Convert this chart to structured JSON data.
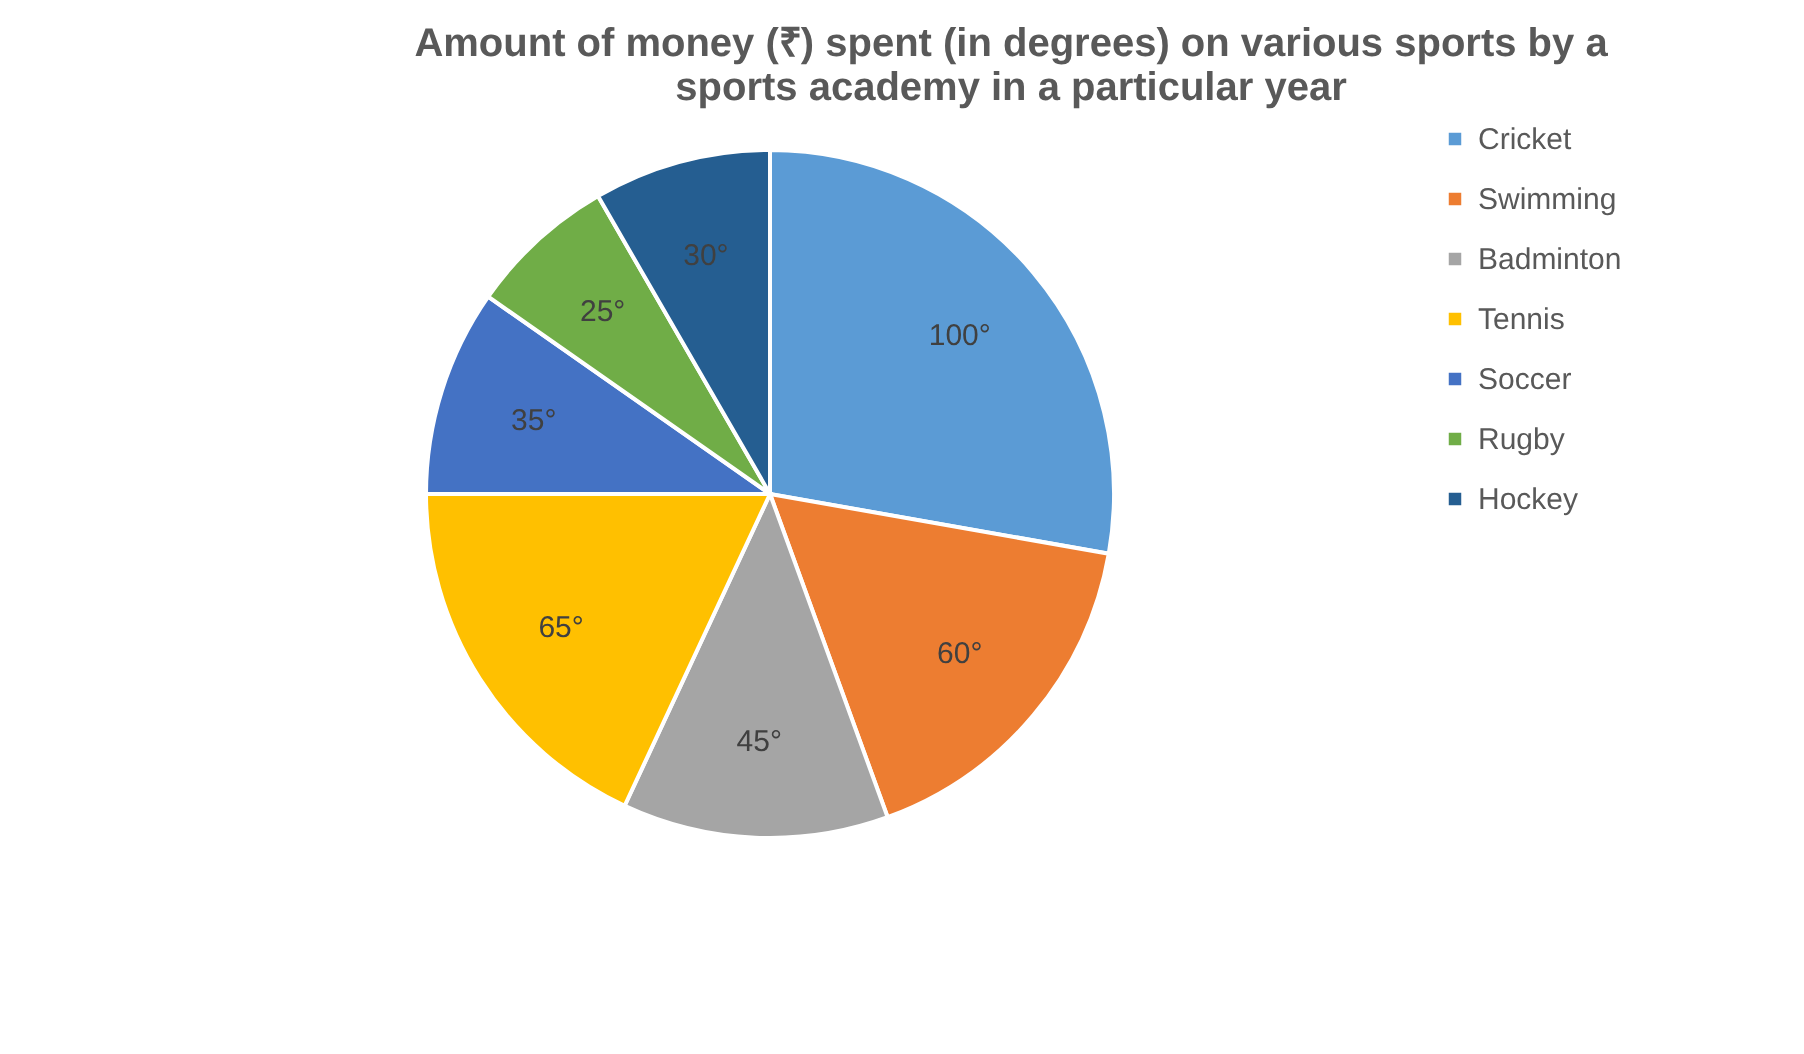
{
  "chart_data": {
    "type": "pie",
    "title": "Amount of money (₹) spent (in degrees) on various sports by a sports academy in a particular year",
    "categories": [
      "Cricket",
      "Swimming",
      "Badminton",
      "Tennis",
      "Soccer",
      "Rugby",
      "Hockey"
    ],
    "values": [
      100,
      60,
      45,
      65,
      35,
      25,
      30
    ],
    "value_labels": [
      "100°",
      "60°",
      "45°",
      "65°",
      "35°",
      "25°",
      "30°"
    ],
    "colors": [
      "#5b9bd5",
      "#ed7d31",
      "#a5a5a5",
      "#ffc000",
      "#4472c4",
      "#70ad47",
      "#255e91"
    ],
    "legend": "right"
  }
}
